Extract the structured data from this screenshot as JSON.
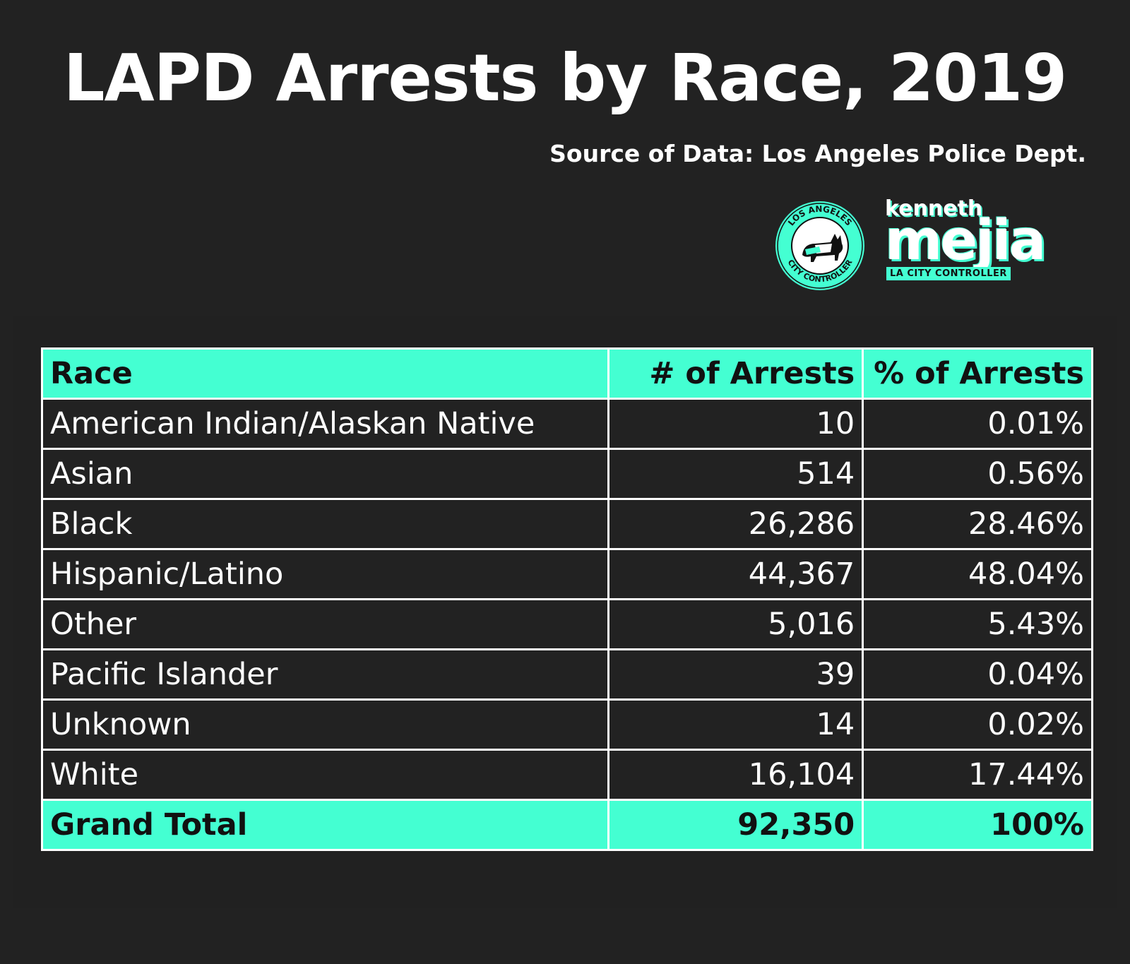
{
  "title": "LAPD Arrests by Race, 2019",
  "source": "Source of Data: Los Angeles Police Dept.",
  "branding": {
    "seal_text_top": "LOS ANGELES",
    "seal_text_bottom": "CITY CONTROLLER",
    "name_first": "kenneth",
    "name_last": "mejia",
    "subtitle": "LA CITY CONTROLLER",
    "accent_color": "#44ffd2"
  },
  "chart_data": {
    "type": "table",
    "columns": [
      "Race",
      "# of Arrests",
      "% of Arrests"
    ],
    "rows": [
      [
        "American Indian/Alaskan Native",
        "10",
        "0.01%"
      ],
      [
        "Asian",
        "514",
        "0.56%"
      ],
      [
        "Black",
        "26,286",
        "28.46%"
      ],
      [
        "Hispanic/Latino",
        "44,367",
        "48.04%"
      ],
      [
        "Other",
        "5,016",
        "5.43%"
      ],
      [
        "Pacific Islander",
        "39",
        "0.04%"
      ],
      [
        "Unknown",
        "14",
        "0.02%"
      ],
      [
        "White",
        "16,104",
        "17.44%"
      ]
    ],
    "total": [
      "Grand Total",
      "92,350",
      "100%"
    ]
  }
}
